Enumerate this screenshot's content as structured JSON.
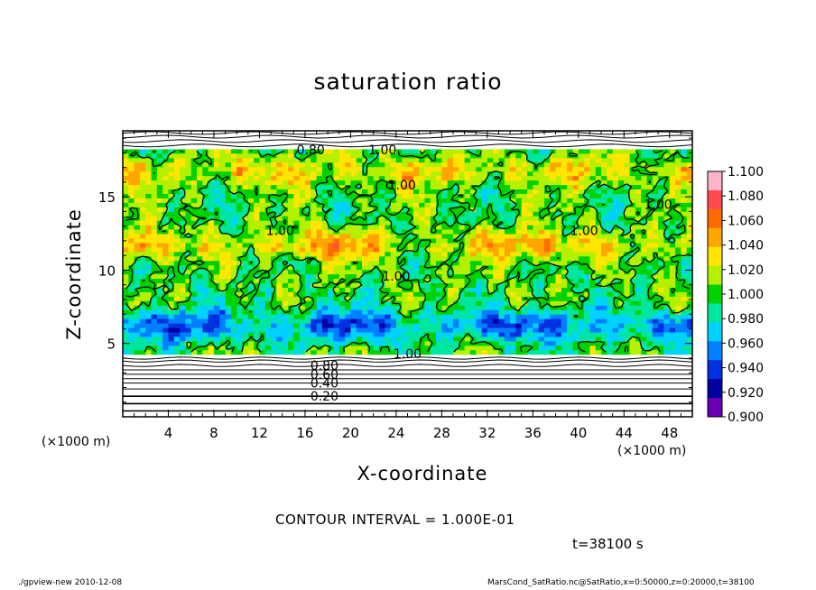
{
  "chart_data": {
    "type": "heatmap",
    "title": "saturation ratio",
    "xlabel": "X-coordinate",
    "ylabel": "Z-coordinate",
    "x_unit_label": "(×1000 m)",
    "xlim": [
      0,
      50
    ],
    "ylim": [
      0,
      19.5
    ],
    "x_ticks": [
      "4",
      "8",
      "12",
      "16",
      "20",
      "24",
      "28",
      "32",
      "36",
      "40",
      "44",
      "48"
    ],
    "y_ticks": [
      "5",
      "10",
      "15"
    ],
    "colorbar": {
      "range": [
        0.9,
        1.1
      ],
      "labels": [
        "1.100",
        "1.080",
        "1.060",
        "1.040",
        "1.020",
        "1.000",
        "0.980",
        "0.960",
        "0.940",
        "0.920",
        "0.900"
      ],
      "colors": [
        "#ffb4c8",
        "#ff4b50",
        "#ff6a00",
        "#ffa500",
        "#ffe600",
        "#b4f000",
        "#00d200",
        "#00e6a0",
        "#00d2ff",
        "#0080ff",
        "#0030e0",
        "#0000a0",
        "#6a00b4"
      ]
    },
    "field_description_values": {
      "moist_layer_z": [
        4.2,
        18.3
      ],
      "low_band_z": [
        5.5,
        7.0
      ],
      "low_band_value": 0.94,
      "high_band_z": [
        11.0,
        12.5
      ],
      "high_band_value": 1.05,
      "upper_band_z": [
        16.0,
        17.5
      ],
      "upper_band_value": 1.04
    },
    "contour_labels": [
      {
        "text": "0.80",
        "x": 16.5,
        "z": 18.2
      },
      {
        "text": "1.00",
        "x": 22.8,
        "z": 18.2
      },
      {
        "text": "1.00",
        "x": 24.5,
        "z": 15.8
      },
      {
        "text": "1.00",
        "x": 47.0,
        "z": 14.5
      },
      {
        "text": "1.00",
        "x": 13.8,
        "z": 12.7
      },
      {
        "text": "1.00",
        "x": 24.0,
        "z": 9.6
      },
      {
        "text": "1.00",
        "x": 40.5,
        "z": 12.7
      },
      {
        "text": "1.00",
        "x": 25.0,
        "z": 4.3
      },
      {
        "text": "0.80",
        "x": 17.7,
        "z": 3.5
      },
      {
        "text": "0.60",
        "x": 17.7,
        "z": 2.9
      },
      {
        "text": "0.40",
        "x": 17.7,
        "z": 2.3
      },
      {
        "text": "0.20",
        "x": 17.7,
        "z": 1.4
      }
    ]
  },
  "contour_interval": "CONTOUR INTERVAL = 1.000E-01",
  "time": "t=38100 s",
  "footer_left": "./gpview-new   2010-12-08",
  "footer_right": "MarsCond_SatRatio.nc@SatRatio,x=0:50000,z=0:20000,t=38100"
}
